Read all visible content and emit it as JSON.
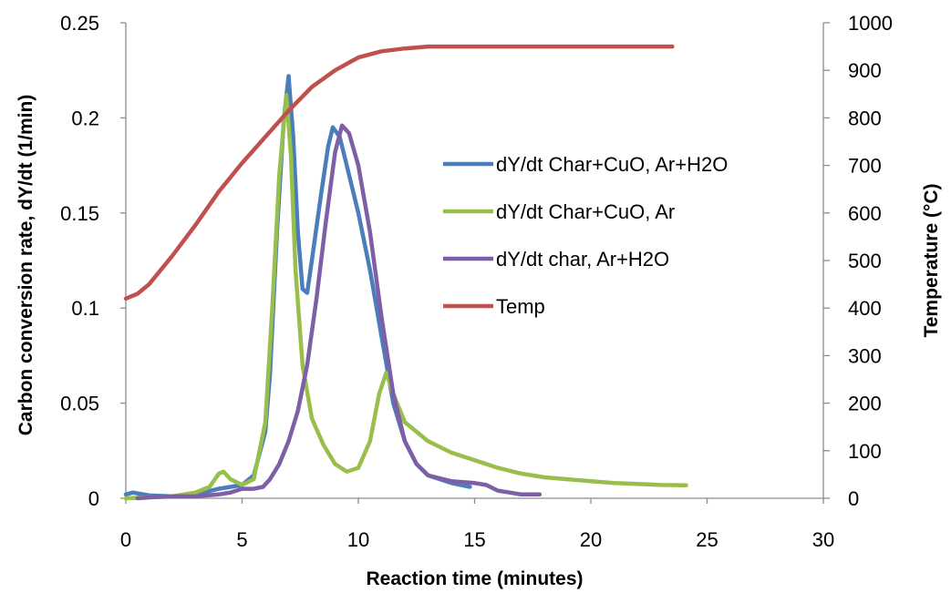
{
  "chart_data": {
    "type": "line",
    "title": "",
    "xlabel": "Reaction time (minutes)",
    "ylabel": "Carbon conversion rate, dY/dt (1/min)",
    "y2label": "Temperature (°C)",
    "xlim": [
      0,
      30
    ],
    "ylim": [
      0,
      0.25
    ],
    "y2lim": [
      0,
      1000
    ],
    "x_ticks": [
      0,
      5,
      10,
      15,
      20,
      25,
      30
    ],
    "y_ticks": [
      0,
      0.05,
      0.1,
      0.15,
      0.2,
      0.25
    ],
    "y2_ticks": [
      0,
      100,
      200,
      300,
      400,
      500,
      600,
      700,
      800,
      900,
      1000
    ],
    "grid": false,
    "legend_position": "center-right",
    "series": [
      {
        "name": "dY/dt Char+CuO, Ar+H2O",
        "color": "#4a7ebb",
        "axis": "left",
        "points": [
          [
            0,
            0.002
          ],
          [
            0.3,
            0.003
          ],
          [
            1,
            0.0015
          ],
          [
            2,
            0.001
          ],
          [
            3,
            0.002
          ],
          [
            4,
            0.005
          ],
          [
            4.5,
            0.006
          ],
          [
            5,
            0.007
          ],
          [
            5.5,
            0.012
          ],
          [
            6,
            0.035
          ],
          [
            6.2,
            0.065
          ],
          [
            6.5,
            0.14
          ],
          [
            6.8,
            0.2
          ],
          [
            7.0,
            0.222
          ],
          [
            7.2,
            0.19
          ],
          [
            7.4,
            0.14
          ],
          [
            7.6,
            0.11
          ],
          [
            7.8,
            0.108
          ],
          [
            8.0,
            0.125
          ],
          [
            8.4,
            0.16
          ],
          [
            8.7,
            0.185
          ],
          [
            8.9,
            0.195
          ],
          [
            9.2,
            0.19
          ],
          [
            9.5,
            0.175
          ],
          [
            10,
            0.15
          ],
          [
            10.5,
            0.12
          ],
          [
            11,
            0.085
          ],
          [
            11.5,
            0.05
          ],
          [
            12,
            0.03
          ],
          [
            12.5,
            0.018
          ],
          [
            13,
            0.012
          ],
          [
            14,
            0.008
          ],
          [
            14.8,
            0.006
          ]
        ]
      },
      {
        "name": "dY/dt Char+CuO, Ar",
        "color": "#98bf4b",
        "axis": "left",
        "points": [
          [
            0,
            0.0
          ],
          [
            1,
            0.0005
          ],
          [
            2,
            0.001
          ],
          [
            3,
            0.003
          ],
          [
            3.6,
            0.006
          ],
          [
            4.0,
            0.013
          ],
          [
            4.2,
            0.014
          ],
          [
            4.5,
            0.01
          ],
          [
            5.0,
            0.007
          ],
          [
            5.5,
            0.01
          ],
          [
            6.0,
            0.04
          ],
          [
            6.3,
            0.1
          ],
          [
            6.6,
            0.17
          ],
          [
            6.9,
            0.212
          ],
          [
            7.1,
            0.18
          ],
          [
            7.3,
            0.12
          ],
          [
            7.6,
            0.07
          ],
          [
            8.0,
            0.042
          ],
          [
            8.5,
            0.028
          ],
          [
            9.0,
            0.018
          ],
          [
            9.5,
            0.014
          ],
          [
            10.0,
            0.016
          ],
          [
            10.5,
            0.03
          ],
          [
            10.9,
            0.055
          ],
          [
            11.2,
            0.066
          ],
          [
            11.5,
            0.055
          ],
          [
            12,
            0.04
          ],
          [
            13,
            0.03
          ],
          [
            14,
            0.024
          ],
          [
            15,
            0.02
          ],
          [
            16,
            0.016
          ],
          [
            17,
            0.013
          ],
          [
            18,
            0.011
          ],
          [
            19,
            0.01
          ],
          [
            20,
            0.009
          ],
          [
            21,
            0.008
          ],
          [
            22,
            0.0075
          ],
          [
            23,
            0.007
          ],
          [
            24.1,
            0.0068
          ]
        ]
      },
      {
        "name": "dY/dt char, Ar+H2O",
        "color": "#7e5ea6",
        "axis": "left",
        "points": [
          [
            0.5,
            0.0
          ],
          [
            1,
            0.0005
          ],
          [
            2,
            0.001
          ],
          [
            3,
            0.001
          ],
          [
            4,
            0.002
          ],
          [
            4.5,
            0.003
          ],
          [
            5,
            0.005
          ],
          [
            5.5,
            0.005
          ],
          [
            5.9,
            0.006
          ],
          [
            6.2,
            0.01
          ],
          [
            6.6,
            0.018
          ],
          [
            7.0,
            0.03
          ],
          [
            7.4,
            0.046
          ],
          [
            7.8,
            0.07
          ],
          [
            8.2,
            0.105
          ],
          [
            8.6,
            0.145
          ],
          [
            9.0,
            0.182
          ],
          [
            9.3,
            0.196
          ],
          [
            9.6,
            0.192
          ],
          [
            10,
            0.175
          ],
          [
            10.5,
            0.14
          ],
          [
            11,
            0.095
          ],
          [
            11.5,
            0.055
          ],
          [
            12,
            0.03
          ],
          [
            12.5,
            0.018
          ],
          [
            13,
            0.012
          ],
          [
            14,
            0.009
          ],
          [
            15,
            0.008
          ],
          [
            15.5,
            0.007
          ],
          [
            16,
            0.004
          ],
          [
            16.5,
            0.003
          ],
          [
            17,
            0.002
          ],
          [
            17.8,
            0.002
          ]
        ]
      },
      {
        "name": "Temp",
        "color": "#c0504d",
        "axis": "right",
        "points": [
          [
            0,
            420
          ],
          [
            0.5,
            430
          ],
          [
            1,
            450
          ],
          [
            2,
            510
          ],
          [
            3,
            575
          ],
          [
            4,
            645
          ],
          [
            5,
            705
          ],
          [
            6,
            760
          ],
          [
            7,
            815
          ],
          [
            8,
            865
          ],
          [
            9,
            900
          ],
          [
            10,
            927
          ],
          [
            11,
            940
          ],
          [
            12,
            946
          ],
          [
            13,
            950
          ],
          [
            14,
            950
          ],
          [
            16,
            950
          ],
          [
            18,
            950
          ],
          [
            20,
            950
          ],
          [
            22,
            950
          ],
          [
            23.5,
            950
          ]
        ]
      }
    ]
  }
}
